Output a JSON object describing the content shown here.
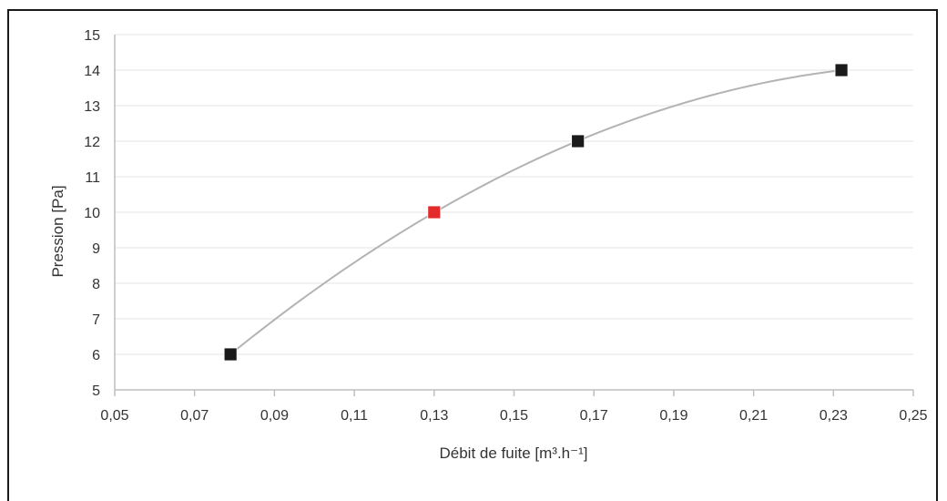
{
  "chart_data": {
    "type": "scatter",
    "title": "",
    "xlabel": "Débit de fuite [m³.h⁻¹]",
    "ylabel": "Pression [Pa]",
    "xlim": [
      0.05,
      0.25
    ],
    "ylim": [
      5,
      15
    ],
    "x_ticks": [
      "0,05",
      "0,07",
      "0,09",
      "0,11",
      "0,13",
      "0,15",
      "0,17",
      "0,19",
      "0,21",
      "0,23",
      "0,25"
    ],
    "y_ticks": [
      "5",
      "6",
      "7",
      "8",
      "9",
      "10",
      "11",
      "12",
      "13",
      "14",
      "15"
    ],
    "grid": true,
    "series": [
      {
        "points": [
          {
            "x": 0.079,
            "y": 6
          },
          {
            "x": 0.13,
            "y": 10
          },
          {
            "x": 0.166,
            "y": 12
          },
          {
            "x": 0.232,
            "y": 14
          }
        ],
        "marker_color": "#1a1a1a",
        "highlight_index": 1,
        "highlight_color": "#e32b2b",
        "trendline_color": "#b3b3b3"
      }
    ]
  }
}
